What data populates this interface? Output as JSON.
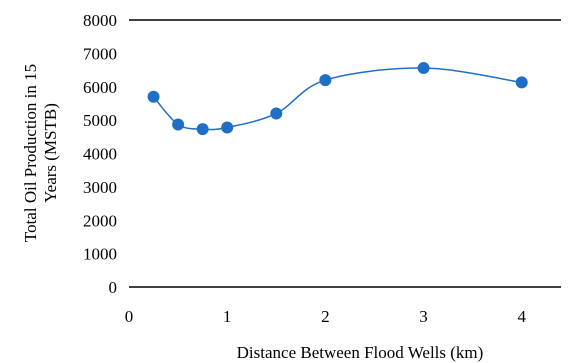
{
  "chart_data": {
    "type": "scatter",
    "title": "",
    "xlabel": "Distance Between Flood Wells (km)",
    "ylabel_lines": [
      "Total Oil Production in 15",
      "Years (MSTB)"
    ],
    "xlim": [
      0,
      4.4
    ],
    "ylim": [
      0,
      8000
    ],
    "x_ticks": [
      0,
      1,
      2,
      3,
      4
    ],
    "y_ticks": [
      0,
      1000,
      2000,
      3000,
      4000,
      5000,
      6000,
      7000,
      8000
    ],
    "grid": false,
    "legend": "none",
    "smooth_line": true,
    "points": [
      {
        "x": 0.25,
        "y": 5700
      },
      {
        "x": 0.5,
        "y": 4870
      },
      {
        "x": 0.75,
        "y": 4730
      },
      {
        "x": 1.0,
        "y": 4780
      },
      {
        "x": 1.5,
        "y": 5200
      },
      {
        "x": 2.0,
        "y": 6200
      },
      {
        "x": 3.0,
        "y": 6560
      },
      {
        "x": 4.0,
        "y": 6130
      }
    ],
    "colors": {
      "marker": "#1f6fc5",
      "line": "#1f6fc5",
      "axis": "#000000"
    }
  }
}
